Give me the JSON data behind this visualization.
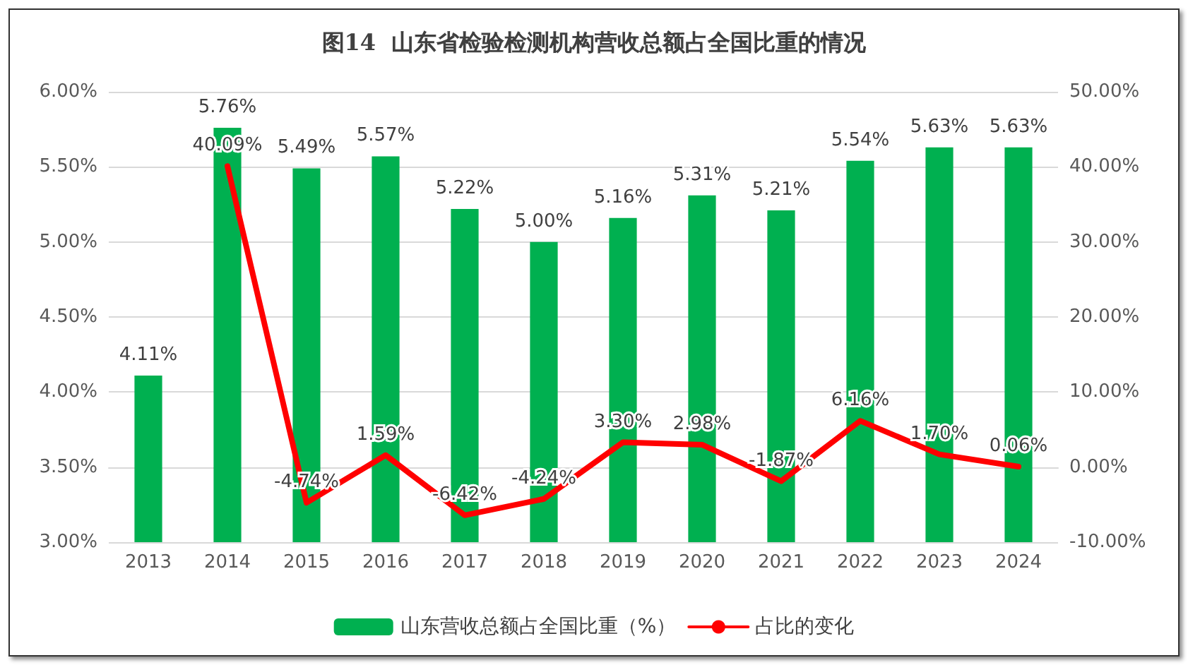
{
  "chart_data": {
    "type": "bar",
    "title": "图14  山东省检验检测机构营收总额占全国比重的情况",
    "categories": [
      "2013",
      "2014",
      "2015",
      "2016",
      "2017",
      "2018",
      "2019",
      "2020",
      "2021",
      "2022",
      "2023",
      "2024"
    ],
    "series": [
      {
        "name": "山东营收总额占全国比重（%）",
        "color": "#00b050",
        "values": [
          4.11,
          5.76,
          5.49,
          5.57,
          5.22,
          5.0,
          5.16,
          5.31,
          5.21,
          5.54,
          5.63,
          5.63
        ],
        "value_labels": [
          "4.11%",
          "5.76%",
          "5.49%",
          "5.57%",
          "5.22%",
          "5.00%",
          "5.16%",
          "5.31%",
          "5.21%",
          "5.54%",
          "5.63%",
          "5.63%"
        ]
      },
      {
        "name": "占比的变化",
        "type": "line",
        "axis": "y2",
        "color": "#ff0000",
        "values": [
          null,
          40.09,
          -4.74,
          1.59,
          -6.42,
          -4.24,
          3.3,
          2.98,
          -1.87,
          6.16,
          1.7,
          0.06
        ],
        "value_labels": [
          null,
          "40.09%",
          "-4.74%",
          "1.59%",
          "-6.42%",
          "-4.24%",
          "3.30%",
          "2.98%",
          "-1.87%",
          "6.16%",
          "1.70%",
          "0.06%"
        ]
      }
    ],
    "ylim": [
      3,
      6
    ],
    "yticks": [
      {
        "value": 3,
        "label": "3.00%"
      },
      {
        "value": 3.5,
        "label": "3.50%"
      },
      {
        "value": 4,
        "label": "4.00%"
      },
      {
        "value": 4.5,
        "label": "4.50%"
      },
      {
        "value": 5,
        "label": "5.00%"
      },
      {
        "value": 5.5,
        "label": "5.50%"
      },
      {
        "value": 6,
        "label": "6.00%"
      }
    ],
    "y2lim": [
      -10,
      50
    ],
    "y2ticks": [
      {
        "value": -10,
        "label": "-10.00%"
      },
      {
        "value": 0,
        "label": "0.00%"
      },
      {
        "value": 10,
        "label": "10.00%"
      },
      {
        "value": 20,
        "label": "20.00%"
      },
      {
        "value": 30,
        "label": "30.00%"
      },
      {
        "value": 40,
        "label": "40.00%"
      },
      {
        "value": 50,
        "label": "50.00%"
      }
    ],
    "grid": "y",
    "legend": "bottom",
    "marker": "none",
    "line_style": "solid"
  }
}
